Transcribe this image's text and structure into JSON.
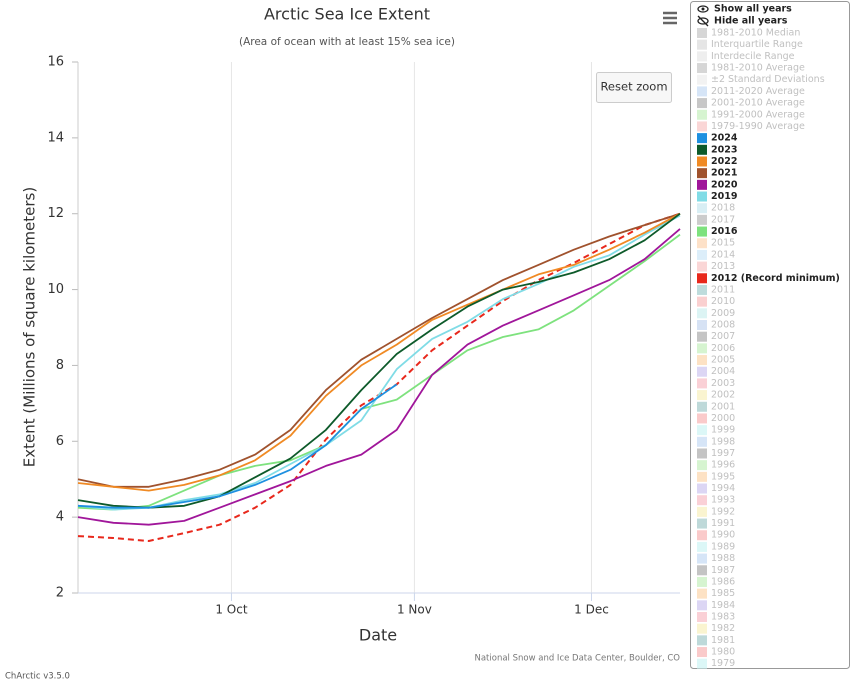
{
  "chart_data": {
    "type": "line",
    "title": "Arctic Sea Ice Extent",
    "subtitle": "(Area of ocean with at least 15% sea ice)",
    "x_label": "Date",
    "y_label": "Extent (Millions of square kilometers)",
    "credit": "National Snow and Ice Data Center, Boulder, CO",
    "xlim": [
      248,
      350
    ],
    "xticks": [
      {
        "value": 274,
        "label": "1 Oct"
      },
      {
        "value": 305,
        "label": "1 Nov"
      },
      {
        "value": 335,
        "label": "1 Dec"
      }
    ],
    "ylim": [
      2,
      16
    ],
    "yticks": [
      2,
      4,
      6,
      8,
      10,
      12,
      14,
      16
    ],
    "grid": true,
    "x": [
      248,
      254,
      260,
      266,
      272,
      278,
      284,
      290,
      296,
      302,
      308,
      314,
      320,
      326,
      332,
      338,
      344,
      350
    ],
    "series": [
      {
        "name": "1981-2010 Median",
        "color": "#c8c8c8",
        "visible": false
      },
      {
        "name": "Interquartile Range",
        "color": "#dcdcdc",
        "visible": false
      },
      {
        "name": "Interdecile Range",
        "color": "#e8e8e8",
        "visible": false
      },
      {
        "name": "1981-2010 Average",
        "color": "#c8c8c8",
        "visible": false
      },
      {
        "name": "±2 Standard Deviations",
        "color": "#eeeeee",
        "visible": false
      },
      {
        "name": "2011-2020 Average",
        "color": "#c8dcf4",
        "visible": false
      },
      {
        "name": "2001-2010 Average",
        "color": "#b4b4b4",
        "visible": false
      },
      {
        "name": "1991-2000 Average",
        "color": "#c8f0c0",
        "visible": false
      },
      {
        "name": "1979-1990 Average",
        "color": "#f8c8c8",
        "visible": false
      },
      {
        "name": "2024",
        "color": "#1e90e0",
        "visible": true,
        "values": [
          4.3,
          4.25,
          4.25,
          4.4,
          4.55,
          4.85,
          5.25,
          5.9,
          6.85,
          7.5,
          null,
          null,
          null,
          null,
          null,
          null,
          null,
          null
        ]
      },
      {
        "name": "2023",
        "color": "#0d5a2a",
        "visible": true,
        "values": [
          4.45,
          4.3,
          4.25,
          4.3,
          4.55,
          5.05,
          5.55,
          6.3,
          7.35,
          8.3,
          8.95,
          9.55,
          10.0,
          10.2,
          10.45,
          10.8,
          11.3,
          12.0
        ]
      },
      {
        "name": "2022",
        "color": "#f08a24",
        "visible": true,
        "values": [
          4.9,
          4.8,
          4.7,
          4.85,
          5.1,
          5.5,
          6.15,
          7.2,
          8.0,
          8.55,
          9.2,
          9.6,
          10.0,
          10.4,
          10.65,
          11.05,
          11.5,
          12.0
        ]
      },
      {
        "name": "2021",
        "color": "#a0522d",
        "visible": true,
        "values": [
          5.0,
          4.8,
          4.8,
          5.0,
          5.25,
          5.65,
          6.3,
          7.35,
          8.15,
          8.7,
          9.25,
          9.75,
          10.25,
          10.65,
          11.05,
          11.4,
          11.7,
          12.0
        ]
      },
      {
        "name": "2020",
        "color": "#a0169a",
        "visible": true,
        "values": [
          4.0,
          3.85,
          3.8,
          3.9,
          4.25,
          4.6,
          4.95,
          5.35,
          5.65,
          6.3,
          7.75,
          8.55,
          9.05,
          9.45,
          9.85,
          10.25,
          10.8,
          11.6
        ]
      },
      {
        "name": "2019",
        "color": "#80dce6",
        "visible": true,
        "values": [
          4.3,
          4.2,
          4.25,
          4.45,
          4.6,
          4.9,
          5.4,
          5.9,
          6.55,
          7.9,
          8.7,
          9.15,
          9.75,
          10.15,
          10.6,
          10.9,
          11.45,
          11.95
        ]
      },
      {
        "name": "2018",
        "color": "#cbe8f0",
        "visible": false
      },
      {
        "name": "2017",
        "color": "#bbbbbb",
        "visible": false
      },
      {
        "name": "2016",
        "color": "#7ee27e",
        "visible": true,
        "values": [
          4.25,
          4.2,
          4.3,
          4.7,
          5.1,
          5.35,
          5.5,
          5.9,
          6.85,
          7.1,
          7.75,
          8.4,
          8.75,
          8.95,
          9.45,
          10.1,
          10.75,
          11.45
        ]
      },
      {
        "name": "2015",
        "color": "#fcd7b5",
        "visible": false
      },
      {
        "name": "2014",
        "color": "#d0e8f8",
        "visible": false
      },
      {
        "name": "2013",
        "color": "#f8c8c8",
        "visible": false
      },
      {
        "name": "2012 (Record minimum)",
        "color": "#e8281c",
        "visible": true,
        "dash": true,
        "values": [
          3.5,
          3.45,
          3.37,
          3.58,
          3.8,
          4.25,
          4.85,
          6.05,
          6.95,
          7.5,
          8.4,
          9.05,
          9.7,
          10.25,
          10.7,
          11.2,
          11.7,
          12.0
        ]
      },
      {
        "name": "2011",
        "color": "#a8d0d0",
        "visible": false
      },
      {
        "name": "2010",
        "color": "#f8c0c0",
        "visible": false
      },
      {
        "name": "2009",
        "color": "#d0f0f0",
        "visible": false
      },
      {
        "name": "2008",
        "color": "#c8d8f0",
        "visible": false
      },
      {
        "name": "2007",
        "color": "#b0b0b0",
        "visible": false
      },
      {
        "name": "2006",
        "color": "#c8f0c0",
        "visible": false
      },
      {
        "name": "2005",
        "color": "#fcd8b0",
        "visible": false
      },
      {
        "name": "2004",
        "color": "#d0c8f0",
        "visible": false
      },
      {
        "name": "2003",
        "color": "#f8c0c8",
        "visible": false
      },
      {
        "name": "2002",
        "color": "#f8f0c0",
        "visible": false
      },
      {
        "name": "2001",
        "color": "#a8cccc",
        "visible": false
      },
      {
        "name": "2000",
        "color": "#f8b8b8",
        "visible": false
      },
      {
        "name": "1999",
        "color": "#d0f4f4",
        "visible": false
      },
      {
        "name": "1998",
        "color": "#c8dcf4",
        "visible": false
      },
      {
        "name": "1997",
        "color": "#b0b0b0",
        "visible": false
      },
      {
        "name": "1996",
        "color": "#c8f0c0",
        "visible": false
      },
      {
        "name": "1995",
        "color": "#fcd8b0",
        "visible": false
      },
      {
        "name": "1994",
        "color": "#d0c8f0",
        "visible": false
      },
      {
        "name": "1993",
        "color": "#f8c0c8",
        "visible": false
      },
      {
        "name": "1992",
        "color": "#f8f0c0",
        "visible": false
      },
      {
        "name": "1991",
        "color": "#a8cccc",
        "visible": false
      },
      {
        "name": "1990",
        "color": "#f8b8b8",
        "visible": false
      },
      {
        "name": "1989",
        "color": "#d0f4f4",
        "visible": false
      },
      {
        "name": "1988",
        "color": "#c8dcf4",
        "visible": false
      },
      {
        "name": "1987",
        "color": "#b0b0b0",
        "visible": false
      },
      {
        "name": "1986",
        "color": "#c8f0c0",
        "visible": false
      },
      {
        "name": "1985",
        "color": "#fcd8b0",
        "visible": false
      },
      {
        "name": "1984",
        "color": "#d0c8f0",
        "visible": false
      },
      {
        "name": "1983",
        "color": "#f8c0c8",
        "visible": false
      },
      {
        "name": "1982",
        "color": "#f8f0c0",
        "visible": false
      },
      {
        "name": "1981",
        "color": "#a8cccc",
        "visible": false
      },
      {
        "name": "1980",
        "color": "#f8b8b8",
        "visible": false
      },
      {
        "name": "1979",
        "color": "#d0f4f4",
        "visible": false
      }
    ]
  },
  "ui": {
    "reset_zoom": "Reset zoom",
    "show_all": "Show all years",
    "hide_all": "Hide all years",
    "version": "ChArctic v3.5.0"
  }
}
